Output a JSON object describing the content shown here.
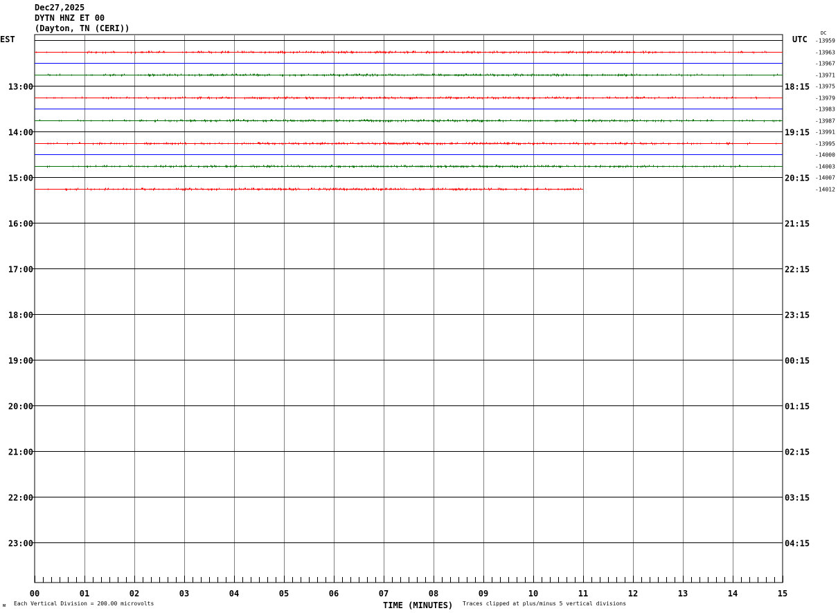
{
  "header": {
    "date": "Dec27,2025",
    "station": "DYTN HNZ ET 00",
    "location": "(Dayton, TN (CERI))"
  },
  "chart_data": {
    "type": "line",
    "title": "DYTN HNZ ET 00",
    "xlabel": "TIME (MINUTES)",
    "xlim": [
      0,
      15
    ],
    "x_ticks": [
      "00",
      "01",
      "02",
      "03",
      "04",
      "05",
      "06",
      "07",
      "08",
      "09",
      "10",
      "11",
      "12",
      "13",
      "14",
      "15"
    ],
    "left_axis_label": "EST",
    "right_axis_label": "UTC",
    "dc_label": "DC",
    "est_ticks": [
      "13:00",
      "14:00",
      "15:00",
      "16:00",
      "17:00",
      "18:00",
      "19:00",
      "20:00",
      "21:00",
      "22:00",
      "23:00"
    ],
    "utc_ticks": [
      "18:15",
      "19:15",
      "20:15",
      "21:15",
      "22:15",
      "23:15",
      "00:15",
      "01:15",
      "02:15",
      "03:15",
      "04:15"
    ],
    "trace_colors": [
      "#000000",
      "#ff0000",
      "#0000ff",
      "#007000"
    ],
    "traces": [
      {
        "dc_offset": "-13959",
        "end_minute": 15
      },
      {
        "dc_offset": "-13963",
        "end_minute": 15
      },
      {
        "dc_offset": "-13967",
        "end_minute": 15
      },
      {
        "dc_offset": "-13971",
        "end_minute": 15
      },
      {
        "dc_offset": "-13975",
        "end_minute": 15
      },
      {
        "dc_offset": "-13979",
        "end_minute": 15
      },
      {
        "dc_offset": "-13983",
        "end_minute": 15
      },
      {
        "dc_offset": "-13987",
        "end_minute": 15
      },
      {
        "dc_offset": "-13991",
        "end_minute": 15
      },
      {
        "dc_offset": "-13995",
        "end_minute": 15
      },
      {
        "dc_offset": "-14000",
        "end_minute": 15
      },
      {
        "dc_offset": "-14003",
        "end_minute": 15
      },
      {
        "dc_offset": "-14007",
        "end_minute": 15
      },
      {
        "dc_offset": "-14012",
        "end_minute": 11
      }
    ],
    "grid": true
  },
  "footer": {
    "scale_note": "Each Vertical Division =  200.00 microvolts",
    "clip_note": "Traces clipped at plus/minus 5 vertical divisions",
    "mark": "ᴍ"
  }
}
